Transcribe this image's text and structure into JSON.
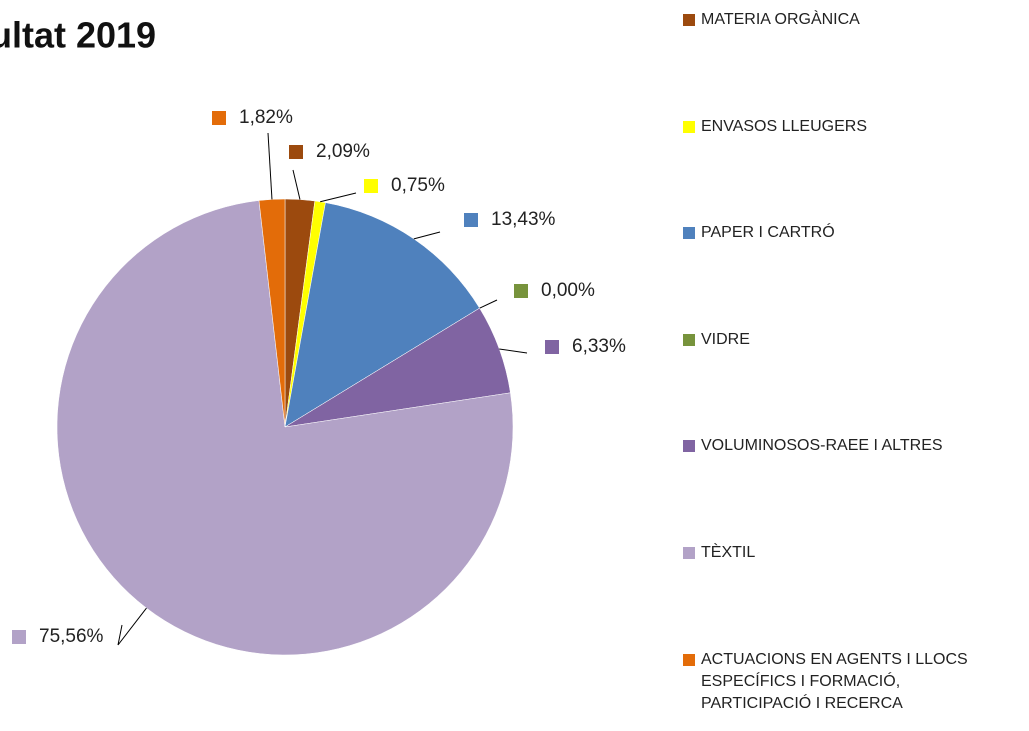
{
  "chart_data": {
    "type": "pie",
    "title": "ultat 2019",
    "categories": [
      "MATERIA ORGÀNICA",
      "ENVASOS LLEUGERS",
      "PAPER I CARTRÓ",
      "VIDRE",
      "VOLUMINOSOS-RAEE I ALTRES",
      "TÈXTIL",
      "ACTUACIONS EN AGENTS I LLOCS ESPECÍFICS I FORMACIÓ, PARTICIPACIÓ I RECERCA"
    ],
    "values": [
      2.09,
      0.75,
      13.43,
      0.0,
      6.33,
      75.56,
      1.82
    ],
    "value_labels": [
      "2,09%",
      "0,75%",
      "13,43%",
      "0,00%",
      "6,33%",
      "75,56%",
      "1,82%"
    ],
    "colors": [
      "#9c4a0e",
      "#ffff00",
      "#4f81bd",
      "#77933c",
      "#8064a2",
      "#b2a2c7",
      "#e36c09"
    ],
    "legend": "right"
  }
}
